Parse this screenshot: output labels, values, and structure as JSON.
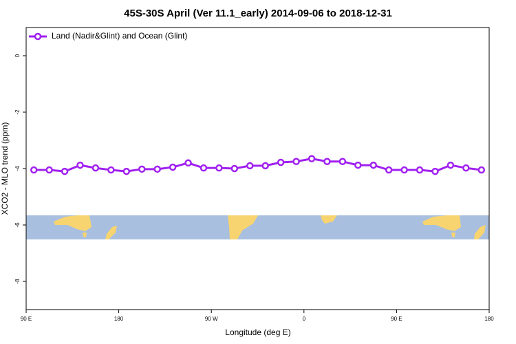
{
  "chart_data": {
    "type": "line",
    "title": "45S-30S April (Ver 11.1_early)   2014-09-06 to 2018-12-31",
    "x_label": "Longitude (deg E)",
    "y_label": "XCO2 - MLO trend (ppm)",
    "x": [
      97.5,
      112.5,
      127.5,
      142.5,
      157.5,
      172.5,
      187.5,
      202.5,
      217.5,
      232.5,
      247.5,
      262.5,
      277.5,
      292.5,
      307.5,
      322.5,
      337.5,
      352.5,
      367.5,
      382.5,
      397.5,
      412.5,
      427.5,
      442.5,
      457.5,
      472.5,
      487.5,
      502.5,
      517.5,
      532.5
    ],
    "series": [
      {
        "name": "Land (Nadir&Glint) and Ocean (Glint)",
        "color": "#a020f0",
        "values": [
          -4.05,
          -4.05,
          -4.1,
          -3.88,
          -3.98,
          -4.05,
          -4.1,
          -4.02,
          -4.02,
          -3.95,
          -3.8,
          -3.98,
          -3.98,
          -4.0,
          -3.9,
          -3.9,
          -3.78,
          -3.75,
          -3.65,
          -3.75,
          -3.75,
          -3.88,
          -3.88,
          -4.05,
          -4.05,
          -4.05,
          -4.1,
          -3.88,
          -3.98,
          -4.05
        ]
      }
    ],
    "xlim": [
      90,
      540
    ],
    "xticks": [
      {
        "value": 90,
        "label": "90 E"
      },
      {
        "value": 180,
        "label": "180"
      },
      {
        "value": 270,
        "label": "90 W"
      },
      {
        "value": 360,
        "label": "0"
      },
      {
        "value": 450,
        "label": "90 E"
      },
      {
        "value": 540,
        "label": "180"
      }
    ],
    "ylim": [
      -9,
      1
    ],
    "yticks": [
      0,
      -2,
      -4,
      -6,
      -8
    ],
    "legend": "top-left"
  }
}
